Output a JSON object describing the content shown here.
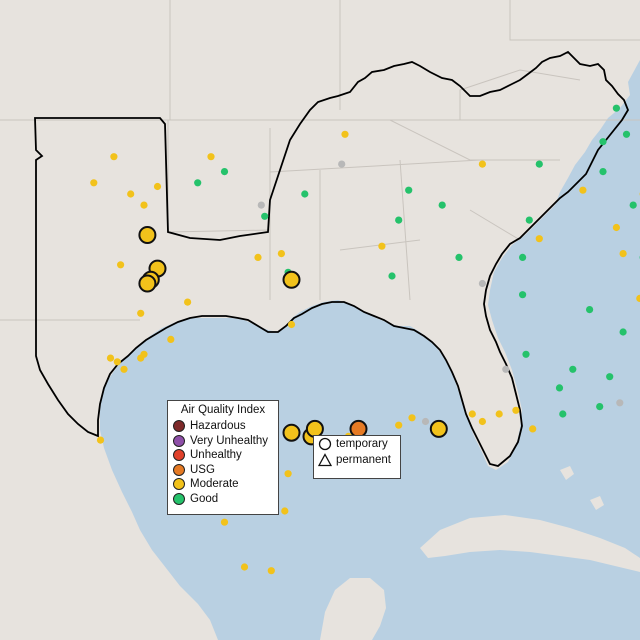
{
  "colors": {
    "ocean": "#b9d0e2",
    "land": "#e7e3de",
    "hazardous": "#7e2a2a",
    "very_unhealthy": "#8e4fa8",
    "unhealthy": "#e0412b",
    "usg": "#e57a24",
    "moderate": "#f2c21b",
    "good": "#25c26b",
    "no_data": "#b8b8b8"
  },
  "aqi_legend": {
    "title": "Air Quality Index",
    "items": [
      {
        "label": "Hazardous",
        "color": "#7e2a2a"
      },
      {
        "label": "Very Unhealthy",
        "color": "#8e4fa8"
      },
      {
        "label": "Unhealthy",
        "color": "#e0412b"
      },
      {
        "label": "USG",
        "color": "#e57a24"
      },
      {
        "label": "Moderate",
        "color": "#f2c21b"
      },
      {
        "label": "Good",
        "color": "#25c26b"
      }
    ]
  },
  "shape_legend": {
    "items": [
      {
        "label": "temporary",
        "icon": "circle-outline-icon"
      },
      {
        "label": "permanent",
        "icon": "triangle-outline-icon"
      }
    ]
  },
  "monitors": {
    "large": [
      {
        "lon": -101.6,
        "lat": 35.2,
        "aqi": "moderate"
      },
      {
        "lon": -101.3,
        "lat": 34.3,
        "aqi": "moderate"
      },
      {
        "lon": -101.5,
        "lat": 34.0,
        "aqi": "moderate"
      },
      {
        "lon": -101.6,
        "lat": 33.9,
        "aqi": "moderate"
      },
      {
        "lon": -97.3,
        "lat": 34.0,
        "aqi": "moderate"
      },
      {
        "lon": -97.3,
        "lat": 29.9,
        "aqi": "moderate"
      },
      {
        "lon": -96.7,
        "lat": 29.8,
        "aqi": "moderate"
      },
      {
        "lon": -96.6,
        "lat": 30.0,
        "aqi": "moderate"
      },
      {
        "lon": -95.3,
        "lat": 30.0,
        "aqi": "usg"
      },
      {
        "lon": -92.9,
        "lat": 30.0,
        "aqi": "moderate"
      }
    ],
    "small_good": [
      [
        -77.5,
        38.9
      ],
      [
        -76.5,
        38.8
      ],
      [
        -78.2,
        37.5
      ],
      [
        -79.3,
        37.1
      ],
      [
        -80.2,
        37.0
      ],
      [
        -81.4,
        37.3
      ],
      [
        -83.2,
        37.6
      ],
      [
        -84.6,
        37.8
      ],
      [
        -86.1,
        38.3
      ],
      [
        -87.3,
        37.9
      ],
      [
        -88.0,
        37.7
      ],
      [
        -84.2,
        36.5
      ],
      [
        -84.7,
        36.1
      ],
      [
        -86.5,
        36.5
      ],
      [
        -87.1,
        36.0
      ],
      [
        -82.1,
        35.9
      ],
      [
        -80.6,
        35.8
      ],
      [
        -79.2,
        35.7
      ],
      [
        -78.1,
        35.6
      ],
      [
        -77.0,
        35.4
      ],
      [
        -80.9,
        34.4
      ],
      [
        -82.3,
        34.0
      ],
      [
        -81.0,
        33.6
      ],
      [
        -80.3,
        33.0
      ],
      [
        -84.4,
        33.6
      ],
      [
        -83.7,
        33.8
      ],
      [
        -85.4,
        33.3
      ],
      [
        -86.3,
        34.0
      ],
      [
        -88.4,
        33.2
      ],
      [
        -87.4,
        32.6
      ],
      [
        -87.8,
        31.4
      ],
      [
        -89.3,
        31.1
      ],
      [
        -90.3,
        32.0
      ],
      [
        -90.4,
        33.6
      ],
      [
        -92.3,
        34.6
      ],
      [
        -94.3,
        34.1
      ],
      [
        -94.1,
        35.6
      ],
      [
        -93.8,
        36.4
      ],
      [
        -92.8,
        36.0
      ],
      [
        -90.2,
        35.6
      ],
      [
        -90.4,
        34.6
      ],
      [
        -96.9,
        36.3
      ],
      [
        -98.1,
        35.7
      ],
      [
        -99.3,
        36.9
      ],
      [
        -100.1,
        36.6
      ],
      [
        -97.4,
        34.2
      ],
      [
        -84.0,
        36.9
      ],
      [
        -83.0,
        35.8
      ],
      [
        -81.1,
        36.4
      ],
      [
        -82.6,
        35.5
      ],
      [
        -84.8,
        34.8
      ],
      [
        -81.0,
        32.1
      ],
      [
        -81.7,
        31.5
      ],
      [
        -81.8,
        30.7
      ],
      [
        -84.8,
        31.8
      ],
      [
        -85.6,
        31.1
      ],
      [
        -88.1,
        30.6
      ],
      [
        -89.2,
        30.4
      ],
      [
        -85.7,
        32.6
      ],
      [
        -79.8,
        36.9
      ],
      [
        -80.0,
        38.8
      ],
      [
        -81.6,
        38.3
      ],
      [
        -77.9,
        38.5
      ],
      [
        -84.0,
        38.2
      ],
      [
        -87.6,
        38.6
      ],
      [
        -83.4,
        36.6
      ],
      [
        -85.5,
        36.8
      ],
      [
        -80.1,
        35.2
      ],
      [
        -78.9,
        34.8
      ],
      [
        -83.7,
        35.0
      ],
      [
        -83.9,
        34.4
      ],
      [
        -86.8,
        34.6
      ],
      [
        -88.9,
        31.6
      ],
      [
        -88.0,
        36.9
      ],
      [
        -89.9,
        37.1
      ],
      [
        -86.2,
        38.6
      ]
    ],
    "small_moderate": [
      [
        -76.2,
        39.3
      ],
      [
        -75.6,
        38.9
      ],
      [
        -76.7,
        38.1
      ],
      [
        -77.0,
        37.6
      ],
      [
        -77.3,
        36.9
      ],
      [
        -76.2,
        36.8
      ],
      [
        -78.5,
        37.2
      ],
      [
        -79.8,
        36.1
      ],
      [
        -80.3,
        35.4
      ],
      [
        -84.3,
        38.0
      ],
      [
        -84.8,
        36.1
      ],
      [
        -85.8,
        36.2
      ],
      [
        -86.8,
        36.3
      ],
      [
        -89.9,
        35.1
      ],
      [
        -91.6,
        37.1
      ],
      [
        -86.2,
        35.1
      ],
      [
        -85.4,
        34.4
      ],
      [
        -84.6,
        34.0
      ],
      [
        -84.1,
        33.3
      ],
      [
        -82.0,
        33.5
      ],
      [
        -86.9,
        33.5
      ],
      [
        -87.4,
        34.7
      ],
      [
        -90.6,
        30.5
      ],
      [
        -91.1,
        30.4
      ],
      [
        -90.1,
        30.0
      ],
      [
        -91.6,
        30.2
      ],
      [
        -93.7,
        30.3
      ],
      [
        -94.1,
        30.1
      ],
      [
        -95.6,
        29.8
      ],
      [
        -96.0,
        29.5
      ],
      [
        -95.2,
        29.4
      ],
      [
        -97.4,
        28.8
      ],
      [
        -97.5,
        27.8
      ],
      [
        -97.9,
        26.2
      ],
      [
        -98.7,
        26.3
      ],
      [
        -99.3,
        27.5
      ],
      [
        -103.0,
        29.7
      ],
      [
        -101.8,
        31.9
      ],
      [
        -102.5,
        31.8
      ],
      [
        -102.7,
        31.9
      ],
      [
        -102.3,
        31.6
      ],
      [
        -100.9,
        32.4
      ],
      [
        -100.4,
        33.4
      ],
      [
        -101.8,
        33.1
      ],
      [
        -102.4,
        34.4
      ],
      [
        -101.3,
        36.5
      ],
      [
        -102.1,
        36.3
      ],
      [
        -102.6,
        37.3
      ],
      [
        -99.7,
        37.3
      ],
      [
        -98.3,
        34.6
      ],
      [
        -97.3,
        32.8
      ],
      [
        -97.6,
        34.7
      ],
      [
        -103.2,
        36.6
      ],
      [
        -101.7,
        36.0
      ],
      [
        -91.9,
        30.4
      ],
      [
        -82.2,
        27.0
      ],
      [
        -80.7,
        26.6
      ],
      [
        -80.2,
        25.8
      ],
      [
        -80.3,
        26.0
      ],
      [
        -81.5,
        30.5
      ],
      [
        -80.0,
        32.8
      ],
      [
        -82.9,
        34.9
      ],
      [
        -87.6,
        35.4
      ],
      [
        -88.6,
        36.4
      ],
      [
        -84.6,
        36.6
      ],
      [
        -82.7,
        36.2
      ],
      [
        -85.7,
        37.8
      ],
      [
        -83.3,
        38.8
      ],
      [
        -80.5,
        38.2
      ],
      [
        -94.6,
        34.9
      ],
      [
        -95.7,
        37.9
      ],
      [
        -101.7,
        32.0
      ]
    ],
    "small_none": [
      [
        -81.3,
        29.0
      ],
      [
        -82.5,
        28.9
      ],
      [
        -81.9,
        28.3
      ],
      [
        -82.7,
        28.1
      ],
      [
        -81.5,
        27.6
      ],
      [
        -82.2,
        26.5
      ],
      [
        -80.8,
        26.2
      ],
      [
        -80.1,
        26.7
      ],
      [
        -81.1,
        29.3
      ],
      [
        -82.3,
        29.6
      ],
      [
        -83.8,
        30.4
      ],
      [
        -84.5,
        30.3
      ],
      [
        -86.6,
        30.5
      ],
      [
        -87.5,
        30.7
      ],
      [
        -85.3,
        30.1
      ],
      [
        -82.8,
        27.9
      ],
      [
        -81.9,
        26.9
      ],
      [
        -80.5,
        28.1
      ],
      [
        -93.3,
        30.2
      ],
      [
        -90.9,
        31.6
      ],
      [
        -95.8,
        37.1
      ],
      [
        -98.2,
        36.0
      ],
      [
        -91.6,
        33.9
      ]
    ]
  }
}
